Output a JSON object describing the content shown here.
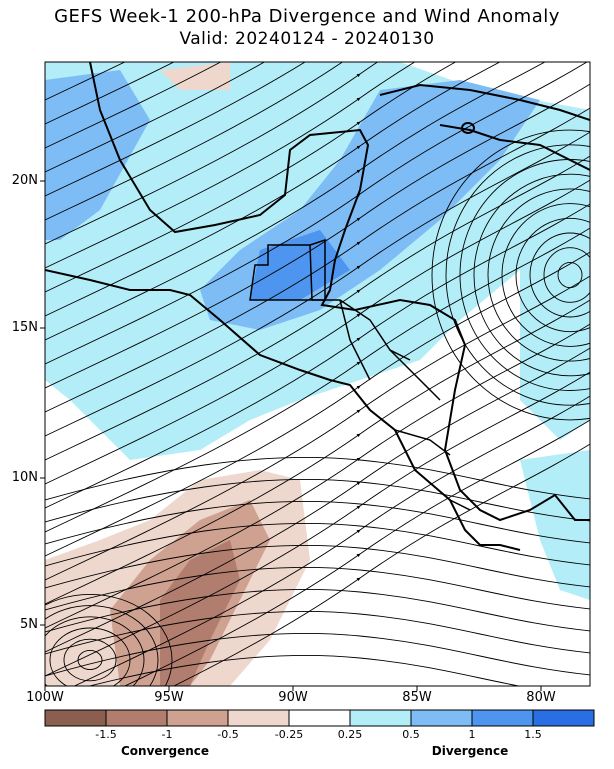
{
  "title": "GEFS Week-1 200-hPa Divergence and Wind Anomaly",
  "subtitle": "Valid: 20240124 - 20240130",
  "lat_labels": [
    "20N",
    "15N",
    "10N",
    "5N"
  ],
  "lon_labels": [
    "100W",
    "95W",
    "90W",
    "85W",
    "80W"
  ],
  "colorbar": {
    "ticks": [
      "-1.5",
      "-1",
      "-0.5",
      "-0.25",
      "0.25",
      "0.5",
      "1",
      "1.5"
    ],
    "left_label": "Convergence",
    "right_label": "Divergence",
    "colors": [
      "#8b5e4f",
      "#b07d6e",
      "#cfa191",
      "#eed8cd",
      "#ffffff",
      "#b3edf7",
      "#7ebcf5",
      "#4d95ee",
      "#2a6ee4"
    ]
  },
  "map_extent": {
    "lon": [
      -100,
      -78
    ],
    "lat": [
      3,
      24
    ]
  }
}
